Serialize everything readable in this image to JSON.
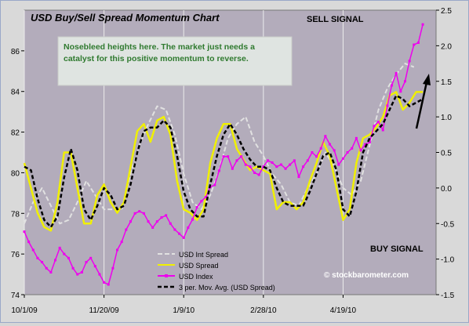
{
  "chart_data": {
    "type": "line",
    "title": "USD Buy/Sell Spread Momentum Chart",
    "annotations": {
      "sell_signal": "SELL SIGNAL",
      "buy_signal": "BUY SIGNAL",
      "note_line1": "Nosebleed heights here.  The market just needs a",
      "note_line2": "catalyst for this positive momentum to reverse.",
      "watermark": "© stockbarometer.com"
    },
    "colors": {
      "plot_bg": "#b3acbb",
      "note_bg": "#dfe4e1",
      "note_text": "#2f7a2f",
      "usd_int_spread": "#e1e1e1",
      "usd_spread": "#f0f000",
      "usd_index": "#ee00ee",
      "mov_avg": "#000000"
    },
    "x_axis": {
      "tick_labels": [
        "10/1/09",
        "11/20/09",
        "1/9/10",
        "2/28/10",
        "4/19/10"
      ],
      "tick_positions": [
        0,
        36,
        72,
        108,
        144
      ],
      "range": [
        0,
        186
      ]
    },
    "y_left": {
      "range": [
        74,
        88
      ],
      "ticks": [
        74,
        76,
        78,
        80,
        82,
        84,
        86
      ]
    },
    "y_right": {
      "range": [
        -1.5,
        2.5
      ],
      "ticks": [
        "-1.5",
        "-1.0",
        "-0.5",
        "0.0",
        "0.5",
        "1.0",
        "1.5",
        "2.0",
        "2.5"
      ]
    },
    "legend": {
      "placement": "bottom-left",
      "items": [
        "USD Int Spread",
        "USD Spread",
        "USD Index",
        "3 per. Mov. Avg. (USD Spread)"
      ]
    },
    "series": [
      {
        "name": "USD Int Spread",
        "axis": "right",
        "x": [
          0,
          4,
          8,
          12,
          16,
          20,
          24,
          28,
          32,
          36,
          40,
          44,
          48,
          52,
          56,
          60,
          64,
          68,
          72,
          76,
          80,
          84,
          88,
          92,
          96,
          100,
          104,
          108,
          112,
          116,
          120,
          124,
          128,
          132,
          136,
          140,
          144,
          148,
          152,
          156,
          160,
          164,
          168,
          172,
          176
        ],
        "y": [
          -0.5,
          -0.2,
          0.0,
          -0.25,
          -0.5,
          -0.45,
          -0.2,
          0.1,
          -0.1,
          -0.3,
          -0.3,
          -0.3,
          0.2,
          0.6,
          0.9,
          1.15,
          1.1,
          0.75,
          0.2,
          -0.2,
          -0.3,
          -0.1,
          0.25,
          0.7,
          0.9,
          1.0,
          0.65,
          0.45,
          0.2,
          0.05,
          -0.2,
          -0.25,
          0.0,
          0.2,
          0.5,
          0.3,
          0.0,
          -0.1,
          0.1,
          0.6,
          1.1,
          1.4,
          1.6,
          1.75,
          1.7
        ]
      },
      {
        "name": "USD Spread",
        "axis": "right",
        "x": [
          0,
          3,
          6,
          9,
          12,
          15,
          18,
          21,
          24,
          27,
          30,
          33,
          36,
          39,
          42,
          45,
          48,
          51,
          54,
          57,
          60,
          63,
          66,
          69,
          72,
          75,
          78,
          81,
          84,
          87,
          90,
          93,
          96,
          99,
          102,
          105,
          108,
          111,
          114,
          117,
          120,
          123,
          126,
          129,
          132,
          135,
          138,
          141,
          144,
          147,
          150,
          153,
          156,
          159,
          162,
          165,
          168,
          171,
          174,
          177,
          180
        ],
        "y": [
          0.35,
          0.0,
          -0.35,
          -0.55,
          -0.6,
          -0.2,
          0.5,
          0.5,
          0.0,
          -0.5,
          -0.5,
          -0.1,
          0.05,
          -0.2,
          -0.35,
          -0.2,
          0.3,
          0.8,
          0.9,
          0.65,
          0.95,
          1.0,
          0.75,
          0.1,
          -0.3,
          -0.35,
          -0.45,
          -0.3,
          0.35,
          0.7,
          0.9,
          0.9,
          0.55,
          0.4,
          0.25,
          0.3,
          0.25,
          0.2,
          -0.3,
          -0.2,
          -0.2,
          -0.3,
          -0.2,
          0.1,
          0.35,
          0.65,
          0.45,
          0.0,
          -0.45,
          -0.3,
          0.35,
          0.7,
          0.75,
          0.85,
          1.0,
          1.3,
          1.35,
          1.1,
          1.2,
          1.35,
          1.35
        ]
      },
      {
        "name": "USD Index",
        "axis": "left",
        "x": [
          0,
          2,
          4,
          6,
          8,
          10,
          12,
          14,
          16,
          18,
          20,
          22,
          24,
          26,
          28,
          30,
          32,
          34,
          36,
          38,
          40,
          42,
          44,
          46,
          48,
          50,
          52,
          54,
          56,
          58,
          60,
          62,
          64,
          66,
          68,
          70,
          72,
          74,
          76,
          78,
          80,
          82,
          84,
          86,
          88,
          90,
          92,
          94,
          96,
          98,
          100,
          102,
          104,
          106,
          108,
          110,
          112,
          114,
          116,
          118,
          120,
          122,
          124,
          126,
          128,
          130,
          132,
          134,
          136,
          138,
          140,
          142,
          144,
          146,
          148,
          150,
          152,
          154,
          156,
          158,
          160,
          162,
          164,
          166,
          168,
          170,
          172,
          174,
          176,
          178,
          180
        ],
        "y": [
          77.1,
          76.6,
          76.2,
          75.8,
          75.6,
          75.3,
          75.1,
          75.7,
          76.3,
          76.0,
          75.8,
          75.3,
          75.0,
          75.1,
          75.6,
          75.8,
          75.4,
          75.0,
          74.6,
          74.5,
          75.3,
          76.2,
          76.6,
          77.2,
          77.6,
          78.0,
          78.1,
          78.0,
          77.6,
          77.3,
          77.6,
          77.8,
          77.9,
          77.5,
          77.2,
          77.0,
          76.8,
          77.3,
          77.7,
          78.3,
          78.6,
          78.8,
          79.3,
          79.4,
          80.1,
          80.8,
          80.8,
          80.2,
          80.6,
          80.8,
          80.4,
          80.3,
          80.0,
          79.9,
          80.3,
          80.6,
          80.5,
          80.3,
          80.4,
          80.2,
          80.4,
          80.6,
          79.8,
          80.3,
          80.6,
          81.0,
          80.8,
          81.2,
          81.8,
          81.4,
          81.1,
          80.4,
          80.7,
          81.0,
          81.2,
          81.7,
          81.1,
          81.4,
          81.5,
          82.3,
          82.5,
          82.1,
          83.3,
          84.3,
          84.9,
          84.0,
          84.5,
          85.5,
          86.3,
          86.4,
          87.3
        ]
      },
      {
        "name": "3 per. Mov. Avg. (USD Spread)",
        "axis": "right",
        "x": [
          0,
          3,
          6,
          9,
          12,
          15,
          18,
          21,
          24,
          27,
          30,
          33,
          36,
          39,
          42,
          45,
          48,
          51,
          54,
          57,
          60,
          63,
          66,
          69,
          72,
          75,
          78,
          81,
          84,
          87,
          90,
          93,
          96,
          99,
          102,
          105,
          108,
          111,
          114,
          117,
          120,
          123,
          126,
          129,
          132,
          135,
          138,
          141,
          144,
          147,
          150,
          153,
          156,
          159,
          162,
          165,
          168,
          171,
          174,
          177,
          180
        ],
        "y": [
          0.3,
          0.25,
          -0.15,
          -0.45,
          -0.55,
          -0.4,
          0.15,
          0.55,
          0.25,
          -0.3,
          -0.45,
          -0.25,
          0.0,
          -0.1,
          -0.3,
          -0.25,
          0.05,
          0.5,
          0.8,
          0.85,
          0.85,
          0.95,
          0.85,
          0.45,
          -0.05,
          -0.3,
          -0.4,
          -0.4,
          0.05,
          0.45,
          0.75,
          0.9,
          0.75,
          0.55,
          0.4,
          0.3,
          0.3,
          0.25,
          0.0,
          -0.2,
          -0.25,
          -0.25,
          -0.25,
          -0.05,
          0.2,
          0.45,
          0.5,
          0.25,
          -0.3,
          -0.4,
          -0.05,
          0.5,
          0.7,
          0.8,
          0.9,
          1.1,
          1.3,
          1.25,
          1.15,
          1.2,
          1.25
        ]
      }
    ]
  }
}
